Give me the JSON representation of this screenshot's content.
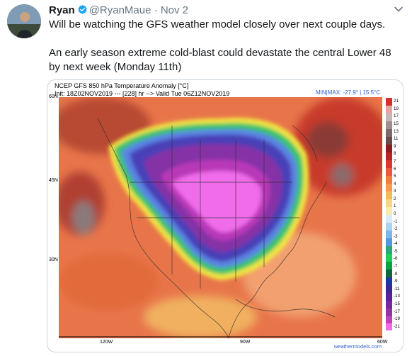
{
  "tweet": {
    "name": "Ryan",
    "handle": "@RyanMaue",
    "separator": "·",
    "date": "Nov 2",
    "text_line1": "Will be watching the GFS weather model closely over next couple days.",
    "text_line2": "An early season extreme cold-blast could devastate the central Lower 48 by next week (Monday 11th)",
    "verified_color": "#1da1f2"
  },
  "map_card": {
    "title_line1": "NCEP GFS 850 hPa Temperature Anomaly [°C]",
    "title_line2": "Init: 18Z02NOV2019 --- [228] hr --> Valid Tue 06Z12NOV2019",
    "minmax": "MIN|MAX: -27.9° | 15.5°C",
    "lat_labels": [
      "60N",
      "45N",
      "30N"
    ],
    "lon_labels": [
      "120W",
      "90W",
      "60W"
    ],
    "credit": "weathermodels.com",
    "colorbar_labels": [
      "21",
      "19",
      "17",
      "15",
      "13",
      "11",
      "9",
      "8",
      "7",
      "6",
      "5",
      "4",
      "3",
      "2",
      "1",
      "0",
      "-1",
      "-2",
      "-3",
      "-4",
      "-5",
      "-6",
      "-7",
      "-8",
      "-9",
      "-11",
      "-13",
      "-15",
      "-17",
      "-19",
      "-21"
    ]
  }
}
